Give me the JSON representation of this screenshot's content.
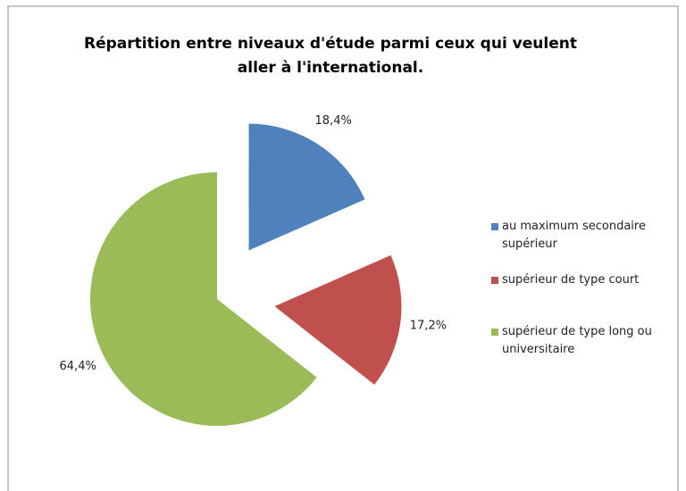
{
  "chart_data": {
    "type": "pie",
    "title": "Répartition entre niveaux d'étude parmi ceux qui veulent aller à l'international.",
    "categories": [
      "au maximum secondaire supérieur",
      "supérieur de type court",
      "supérieur de type long ou universitaire"
    ],
    "values": [
      18.4,
      17.2,
      64.4
    ],
    "value_labels": [
      "18,4%",
      "17,2%",
      "64,4%"
    ],
    "colors": [
      "#4f81bd",
      "#c0504d",
      "#9bbb59"
    ],
    "legend": "right"
  }
}
